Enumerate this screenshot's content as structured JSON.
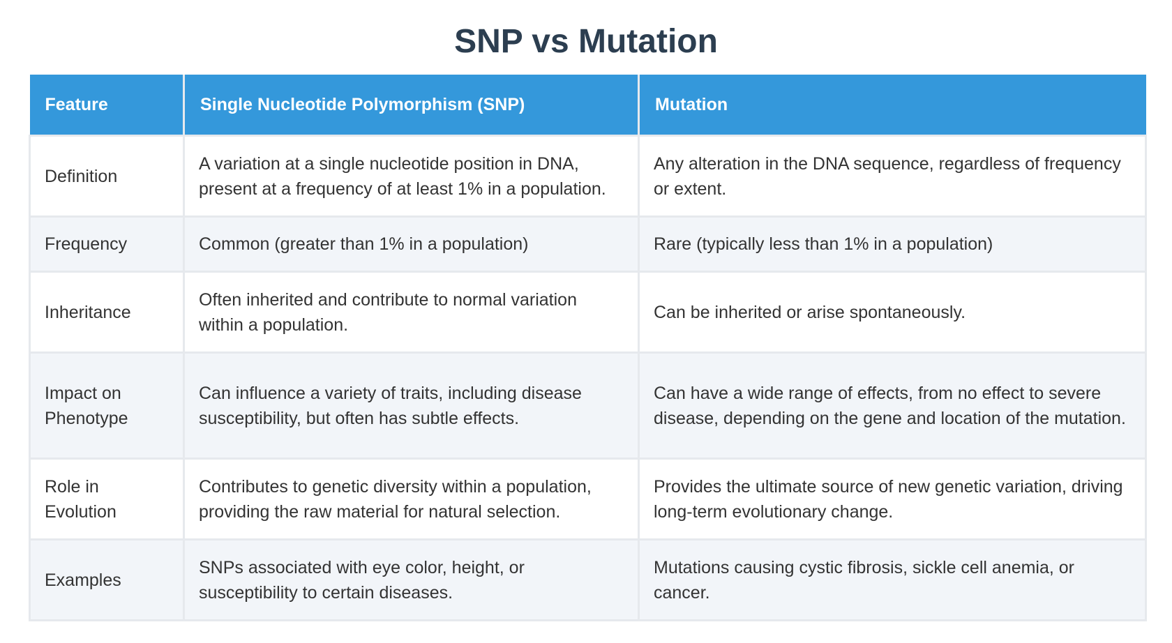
{
  "title": "SNP vs Mutation",
  "table": {
    "headers": [
      "Feature",
      "Single Nucleotide Polymorphism (SNP)",
      "Mutation"
    ],
    "rows": [
      {
        "feature": "Definition",
        "snp": "A variation at a single nucleotide position in DNA, present at a frequency of at least 1% in a population.",
        "mutation": "Any alteration in the DNA sequence, regardless of frequency or extent."
      },
      {
        "feature": "Frequency",
        "snp": "Common (greater than 1% in a population)",
        "mutation": "Rare (typically less than 1% in a population)"
      },
      {
        "feature": "Inheritance",
        "snp": "Often inherited and contribute to normal variation within a population.",
        "mutation": "Can be inherited or arise spontaneously."
      },
      {
        "feature": "Impact on Phenotype",
        "snp": "Can influence a variety of traits, including disease susceptibility, but often has subtle effects.",
        "mutation": "Can have a wide range of effects, from no effect to severe disease, depending on the gene and location of the mutation."
      },
      {
        "feature": "Role in Evolution",
        "snp": "Contributes to genetic diversity within a population, providing the raw material for natural selection.",
        "mutation": "Provides the ultimate source of new genetic variation, driving long-term evolutionary change."
      },
      {
        "feature": "Examples",
        "snp": "SNPs associated with eye color, height, or susceptibility to certain diseases.",
        "mutation": "Mutations causing cystic fibrosis, sickle cell anemia, or cancer."
      }
    ]
  },
  "colors": {
    "title": "#2c3e50",
    "header_background": "#3498db",
    "header_text": "#ffffff",
    "row_alt_background": "#f2f5f9",
    "border": "#e6e9ed",
    "body_text": "#333333"
  }
}
